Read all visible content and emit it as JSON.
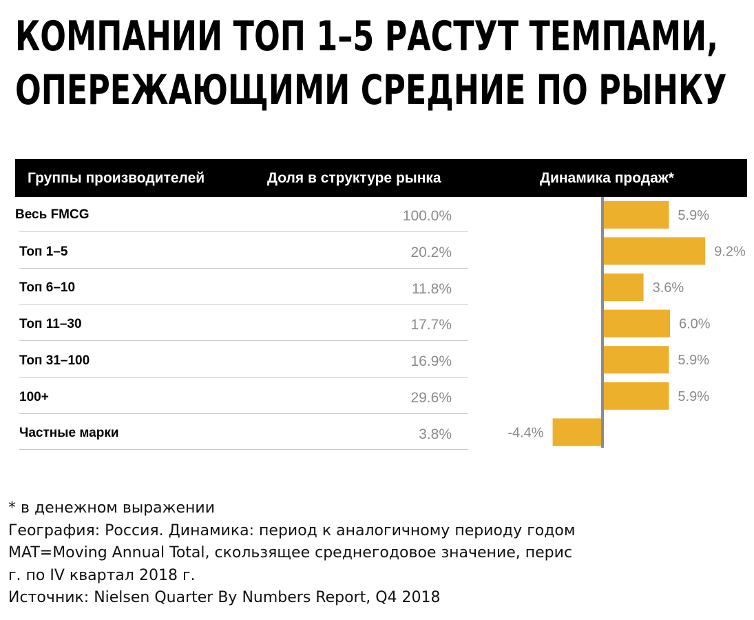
{
  "title": {
    "line1": "КОМПАНИИ ТОП 1–5 РАСТУТ ТЕМПАМИ,",
    "line2": "ОПЕРЕЖАЮЩИМИ СРЕДНИЕ ПО РЫНКУ"
  },
  "table": {
    "headers": {
      "groups": "Группы производителей",
      "share": "Доля в структуре рынка",
      "dynamics": "Динамика продаж*"
    },
    "rows": [
      {
        "label": "Весь FMCG",
        "share": "100.0%"
      },
      {
        "label": "Топ 1–5",
        "share": "20.2%"
      },
      {
        "label": "Топ 6–10",
        "share": "11.8%"
      },
      {
        "label": "Топ 11–30",
        "share": "17.7%"
      },
      {
        "label": "Топ 31–100",
        "share": "16.9%"
      },
      {
        "label": "100+",
        "share": "29.6%"
      },
      {
        "label": "Частные марки",
        "share": "3.8%"
      }
    ]
  },
  "chart_data": {
    "type": "bar",
    "orientation": "horizontal",
    "categories": [
      "Весь FMCG",
      "Топ 1–5",
      "Топ 6–10",
      "Топ 11–30",
      "Топ 31–100",
      "100+",
      "Частные марки"
    ],
    "values": [
      5.9,
      9.2,
      3.6,
      6.0,
      5.9,
      5.9,
      -4.4
    ],
    "value_labels": [
      "5.9%",
      "9.2%",
      "3.6%",
      "6.0%",
      "5.9%",
      "5.9%",
      "-4.4%"
    ],
    "title": "Динамика продаж*",
    "bar_color": "#EDB02D",
    "axis_color": "#8c8c8c",
    "label_color": "#8a8a8a"
  },
  "notes": [
    "* в денежном выражении",
    "География: Россия. Динамика: период к аналогичному периоду годом",
    "MAT=Moving Annual Total, скользящее среднегодовое значение, перис",
    "г. по IV квартал 2018 г.",
    "Источник: Nielsen Quarter By Numbers Report, Q4 2018"
  ]
}
